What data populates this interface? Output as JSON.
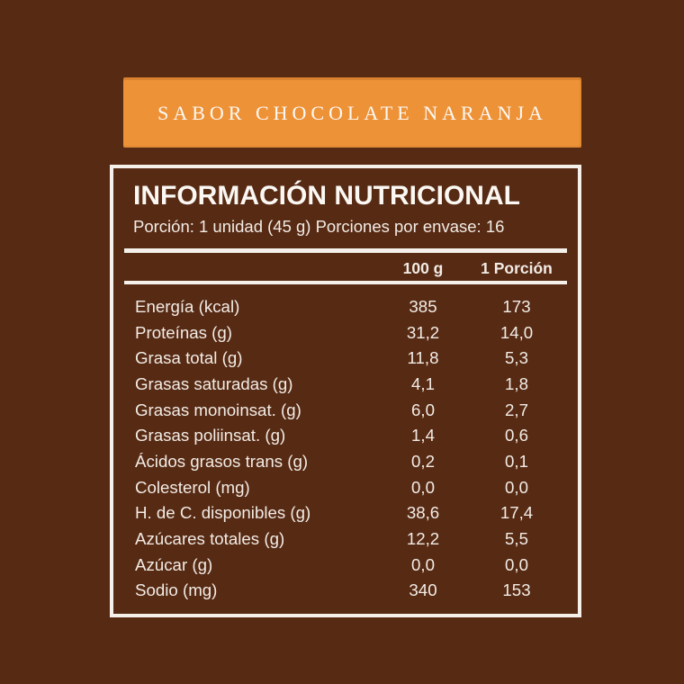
{
  "colors": {
    "background": "#572A14",
    "banner": "#EE9238",
    "ink": "#F2ECE5"
  },
  "banner": {
    "label": "SABOR CHOCOLATE NARANJA"
  },
  "panel": {
    "title": "INFORMACIÓN NUTRICIONAL",
    "serving_info": "Porción: 1 unidad (45 g) Porciones por envase: 16",
    "column_headers": {
      "per_100g": "100 g",
      "per_portion": "1 Porción"
    },
    "rows": [
      {
        "label": "Energía (kcal)",
        "per_100g": "385",
        "per_portion": "173"
      },
      {
        "label": "Proteínas (g)",
        "per_100g": "31,2",
        "per_portion": "14,0"
      },
      {
        "label": "Grasa total (g)",
        "per_100g": "11,8",
        "per_portion": "5,3"
      },
      {
        "label": "Grasas saturadas (g)",
        "per_100g": "4,1",
        "per_portion": "1,8"
      },
      {
        "label": "Grasas monoinsat. (g)",
        "per_100g": "6,0",
        "per_portion": "2,7"
      },
      {
        "label": "Grasas poliinsat. (g)",
        "per_100g": "1,4",
        "per_portion": "0,6"
      },
      {
        "label": "Ácidos grasos trans (g)",
        "per_100g": "0,2",
        "per_portion": "0,1"
      },
      {
        "label": "Colesterol (mg)",
        "per_100g": "0,0",
        "per_portion": "0,0"
      },
      {
        "label": "H. de C. disponibles (g)",
        "per_100g": "38,6",
        "per_portion": "17,4"
      },
      {
        "label": "Azúcares totales (g)",
        "per_100g": "12,2",
        "per_portion": "5,5"
      },
      {
        "label": "Azúcar (g)",
        "per_100g": "0,0",
        "per_portion": "0,0"
      },
      {
        "label": "Sodio (mg)",
        "per_100g": "340",
        "per_portion": "153"
      }
    ]
  }
}
